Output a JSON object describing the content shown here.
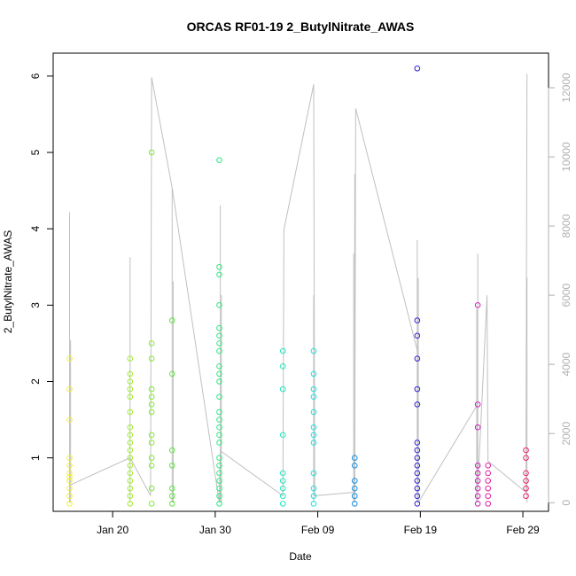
{
  "chart_data": {
    "type": "scatter",
    "title": "ORCAS RF01-19 2_ButylNitrate_AWAS",
    "xlabel": "Date",
    "ylabel": "2_ButylNitrate_AWAS",
    "x_ticks": [
      "Jan 20",
      "Jan 30",
      "Feb 09",
      "Feb 19",
      "Feb 29"
    ],
    "x_tick_days": [
      20,
      30,
      40,
      50,
      60
    ],
    "xlim_days": [
      14.2,
      62.5
    ],
    "ylim": [
      0.3,
      6.3
    ],
    "y_ticks": [
      1,
      2,
      3,
      4,
      5,
      6
    ],
    "y2_ticks": [
      0,
      2000,
      4000,
      6000,
      8000,
      10000,
      12000
    ],
    "y2lim": [
      -250,
      13000
    ],
    "grid": false,
    "groups": [
      {
        "day": 15.8,
        "color": "#f0f040",
        "values": [
          2.3,
          1.9,
          1.5,
          1.0,
          0.9,
          0.8,
          0.75,
          0.7,
          0.6,
          0.5,
          0.4
        ]
      },
      {
        "day": 21.7,
        "color": "#a0ee30",
        "values": [
          2.3,
          2.1,
          2.0,
          1.9,
          1.8,
          1.6,
          1.4,
          1.3,
          1.2,
          1.1,
          1.0,
          0.9,
          0.8,
          0.7,
          0.6,
          0.5,
          0.4
        ]
      },
      {
        "day": 23.8,
        "color": "#80ea30",
        "values": [
          5.0,
          2.5,
          2.3,
          1.9,
          1.8,
          1.7,
          1.6,
          1.3,
          1.2,
          1.0,
          0.9,
          0.6,
          0.4
        ]
      },
      {
        "day": 25.8,
        "color": "#60e640",
        "values": [
          2.8,
          2.1,
          1.1,
          0.9,
          0.6,
          0.5,
          0.4
        ]
      },
      {
        "day": 30.4,
        "color": "#30e880",
        "values": [
          4.9,
          3.5,
          3.4,
          3.0,
          2.7,
          2.6,
          2.5,
          2.4,
          2.2,
          2.1,
          2.0,
          1.8,
          1.6,
          1.5,
          1.4,
          1.3,
          1.2,
          1.0,
          0.9,
          0.8,
          0.7,
          0.6,
          0.5,
          0.4
        ]
      },
      {
        "day": 36.6,
        "color": "#20e8c0",
        "values": [
          2.4,
          2.2,
          1.9,
          1.3,
          0.8,
          0.7,
          0.6,
          0.5,
          0.4
        ]
      },
      {
        "day": 39.6,
        "color": "#20e0e0",
        "values": [
          2.4,
          2.1,
          1.9,
          1.8,
          1.6,
          1.4,
          1.3,
          1.2,
          0.8,
          0.6,
          0.5,
          0.4
        ]
      },
      {
        "day": 43.6,
        "color": "#1890e0",
        "values": [
          1.0,
          0.9,
          0.7,
          0.6,
          0.5,
          0.4
        ]
      },
      {
        "day": 49.7,
        "color": "#3020d8",
        "values": [
          6.1,
          2.8,
          2.6,
          2.3,
          1.9,
          1.7,
          1.2,
          1.1,
          1.0,
          0.9,
          0.8,
          0.7,
          0.6,
          0.5,
          0.4
        ]
      },
      {
        "day": 55.6,
        "color": "#d020c0",
        "values": [
          3.0,
          1.7,
          1.4,
          0.9,
          0.8,
          0.7,
          0.6,
          0.5,
          0.4
        ]
      },
      {
        "day": 56.6,
        "color": "#e020a0",
        "values": [
          0.9,
          0.8,
          0.7,
          0.6,
          0.5,
          0.4
        ]
      },
      {
        "day": 60.3,
        "color": "#f02070",
        "values": [
          1.1,
          1.0,
          0.8,
          0.7,
          0.6,
          0.5
        ]
      }
    ],
    "secondary_series": {
      "name": "",
      "color": "#c0c0c0",
      "axis": "right",
      "line": [
        {
          "day": 15.8,
          "value": 500
        },
        {
          "day": 21.7,
          "value": 1300
        },
        {
          "day": 23.7,
          "value": 200
        },
        {
          "day": 23.8,
          "value": 12300
        },
        {
          "day": 25.8,
          "value": 9100
        },
        {
          "day": 30.4,
          "value": 0
        },
        {
          "day": 30.5,
          "value": 1500
        },
        {
          "day": 36.6,
          "value": 200
        },
        {
          "day": 36.7,
          "value": 7900
        },
        {
          "day": 39.6,
          "value": 12100
        },
        {
          "day": 39.7,
          "value": 200
        },
        {
          "day": 43.6,
          "value": 300
        },
        {
          "day": 43.7,
          "value": 11400
        },
        {
          "day": 49.7,
          "value": 4400
        },
        {
          "day": 49.8,
          "value": 0
        },
        {
          "day": 55.5,
          "value": 2800
        },
        {
          "day": 55.6,
          "value": 400
        },
        {
          "day": 56.5,
          "value": 6000
        },
        {
          "day": 56.6,
          "value": 1200
        },
        {
          "day": 60.3,
          "value": 300
        },
        {
          "day": 60.4,
          "value": 12400
        }
      ],
      "bars": [
        {
          "day": 15.8,
          "top": 8400
        },
        {
          "day": 15.9,
          "top": 4700
        },
        {
          "day": 21.7,
          "top": 7100
        },
        {
          "day": 25.8,
          "top": 9100
        },
        {
          "day": 25.9,
          "top": 6400
        },
        {
          "day": 30.5,
          "top": 8600
        },
        {
          "day": 30.6,
          "top": 6000
        },
        {
          "day": 39.6,
          "top": 6000
        },
        {
          "day": 43.6,
          "top": 9500
        },
        {
          "day": 43.5,
          "top": 7200
        },
        {
          "day": 49.7,
          "top": 7600
        },
        {
          "day": 49.8,
          "top": 6500
        },
        {
          "day": 55.6,
          "top": 7200
        },
        {
          "day": 55.5,
          "top": 5600
        },
        {
          "day": 60.4,
          "top": 6500
        }
      ]
    }
  }
}
